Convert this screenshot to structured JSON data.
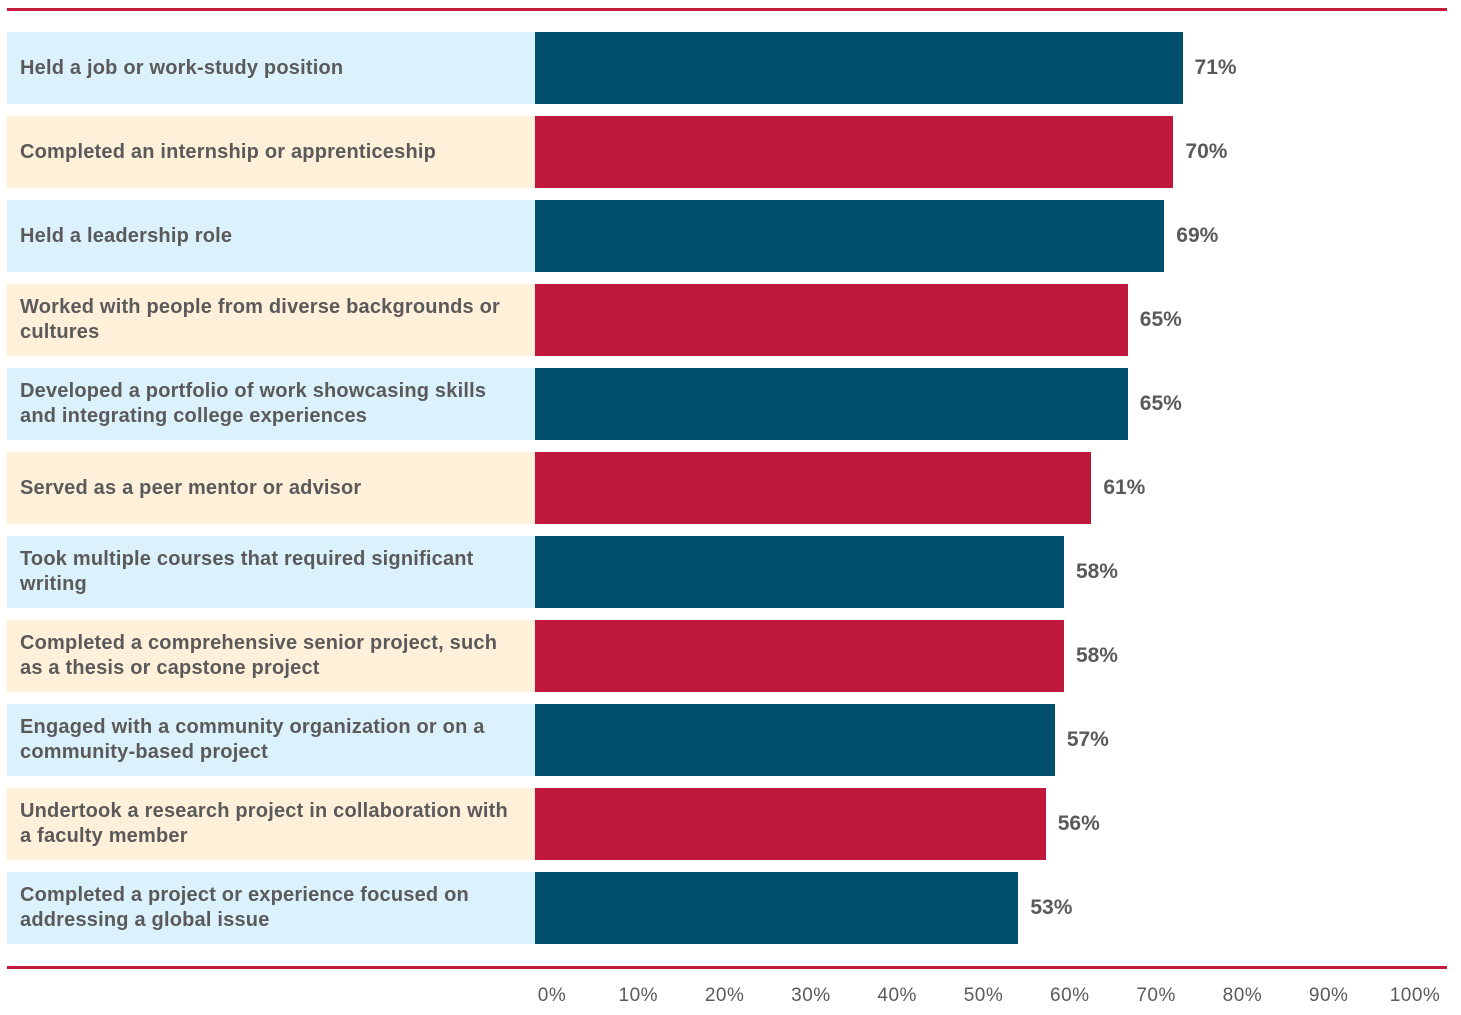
{
  "chart_data": {
    "type": "bar",
    "orientation": "horizontal",
    "categories": [
      "Held a job or work-study position",
      "Completed an internship or apprenticeship",
      "Held a leadership role",
      "Worked with people from diverse backgrounds or cultures",
      "Developed a portfolio of work showcasing skills and integrating college experiences",
      "Served as a peer mentor or advisor",
      "Took multiple courses that required significant writing",
      "Completed a comprehensive senior project, such as a thesis or capstone project",
      "Engaged with a community organization or on a community-based project",
      "Undertook a research project in collaboration with a faculty member",
      "Completed a project or experience focused on addressing a global issue"
    ],
    "values": [
      71,
      70,
      69,
      65,
      65,
      61,
      58,
      58,
      57,
      56,
      53
    ],
    "value_labels": [
      "71%",
      "70%",
      "69%",
      "65%",
      "65%",
      "61%",
      "58%",
      "58%",
      "57%",
      "56%",
      "53%"
    ],
    "xlim": [
      0,
      100
    ],
    "ticks": [
      "0%",
      "10%",
      "20%",
      "30%",
      "40%",
      "50%",
      "60%",
      "70%",
      "80%",
      "90%",
      "100%"
    ],
    "tick_values": [
      0,
      10,
      20,
      30,
      40,
      50,
      60,
      70,
      80,
      90,
      100
    ],
    "grid": false,
    "legend": "none",
    "title": "",
    "xlabel": "",
    "ylabel": "",
    "colors": {
      "bar_alternate_1": "#004f6b",
      "bar_alternate_2": "#c0183d",
      "label_bg_alternate_1": "#dbf1fc",
      "label_bg_alternate_2": "#fff0da",
      "rule": "#c41a3c",
      "text": "#5a5a5a"
    }
  }
}
